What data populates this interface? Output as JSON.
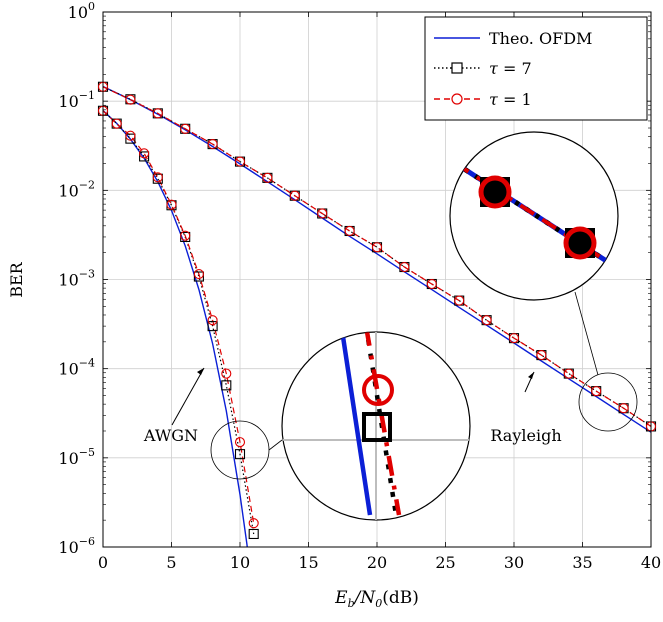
{
  "chart_data": {
    "type": "line",
    "title": "",
    "xlabel": "E_b/N_0(dB)",
    "ylabel": "BER",
    "xlim": [
      0,
      40
    ],
    "ylim": [
      1e-06,
      1
    ],
    "y_scale": "log",
    "grid": true,
    "legend_position": "top-right",
    "x_ticks": [
      "0",
      "5",
      "10",
      "15",
      "20",
      "25",
      "30",
      "35",
      "40"
    ],
    "y_tick_exponents": [
      "0",
      "−1",
      "−2",
      "−3",
      "−4",
      "−5",
      "−6"
    ],
    "y_tick_base": "10",
    "series": [
      {
        "name": "Theo. OFDM",
        "style": "solid",
        "color": "#0b1fd6",
        "marker": "none",
        "curves": [
          {
            "x": [
              0,
              1,
              2,
              3,
              4,
              5,
              6,
              7,
              8,
              9,
              10,
              10.5,
              11
            ],
            "y": [
              0.0786,
              0.0563,
              0.0375,
              0.0229,
              0.0125,
              0.00595,
              0.00239,
              0.000773,
              0.000191,
              3.36e-05,
              3.87e-06,
              1.1e-06,
              2.6e-07
            ]
          },
          {
            "x": [
              0,
              2,
              4,
              6,
              8,
              10,
              12,
              14,
              16,
              18,
              20,
              22,
              24,
              26,
              28,
              30,
              32,
              34,
              36,
              38,
              40
            ],
            "y": [
              0.146,
              0.104,
              0.0715,
              0.0477,
              0.031,
              0.0198,
              0.0125,
              0.00785,
              0.0049,
              0.00305,
              0.00194,
              0.00122,
              0.00077,
              0.000486,
              0.000307,
              0.000194,
              0.000122,
              7.7e-05,
              4.87e-05,
              3.07e-05,
              1.94e-05
            ]
          }
        ]
      },
      {
        "name": "τ = 7",
        "style": "dotted",
        "color": "#000000",
        "marker": "square",
        "curves": [
          {
            "x": [
              0,
              1,
              2,
              3,
              4,
              5,
              6,
              7,
              8,
              9,
              10,
              11
            ],
            "y": [
              0.078,
              0.056,
              0.038,
              0.024,
              0.0135,
              0.0068,
              0.003,
              0.00108,
              0.0003,
              6.5e-05,
              1.1e-05,
              1.4e-06
            ]
          },
          {
            "x": [
              0,
              2,
              4,
              6,
              8,
              10,
              12,
              14,
              16,
              18,
              20,
              22,
              24,
              26,
              28,
              30,
              32,
              34,
              36,
              38,
              40
            ],
            "y": [
              0.145,
              0.105,
              0.073,
              0.049,
              0.033,
              0.021,
              0.0138,
              0.0087,
              0.0055,
              0.0035,
              0.0023,
              0.00138,
              0.00089,
              0.00058,
              0.00035,
              0.00022,
              0.000142,
              8.8e-05,
              5.6e-05,
              3.6e-05,
              2.25e-05
            ]
          }
        ]
      },
      {
        "name": "τ = 1",
        "style": "dashed",
        "color": "#e00000",
        "marker": "circle",
        "curves": [
          {
            "x": [
              0,
              1,
              2,
              3,
              4,
              5,
              6,
              7,
              8,
              9,
              10,
              11
            ],
            "y": [
              0.078,
              0.056,
              0.041,
              0.026,
              0.014,
              0.0069,
              0.0031,
              0.00115,
              0.00035,
              8.8e-05,
              1.5e-05,
              1.85e-06
            ]
          },
          {
            "x": [
              0,
              2,
              4,
              6,
              8,
              10,
              12,
              14,
              16,
              18,
              20,
              22,
              24,
              26,
              28,
              30,
              32,
              34,
              36,
              38,
              40
            ],
            "y": [
              0.145,
              0.104,
              0.073,
              0.049,
              0.033,
              0.021,
              0.0138,
              0.0087,
              0.0055,
              0.0035,
              0.0023,
              0.00138,
              0.00089,
              0.00058,
              0.00035,
              0.00022,
              0.000142,
              8.8e-05,
              5.6e-05,
              3.6e-05,
              2.25e-05
            ]
          }
        ]
      }
    ],
    "annotations": [
      {
        "text": "AWGN",
        "arrow_to": {
          "x": 7.5,
          "y": 0.0001
        }
      },
      {
        "text": "Rayleigh",
        "arrow_to": {
          "x": 31,
          "y": 0.0001
        }
      }
    ],
    "zoom_callouts": [
      {
        "region": "AWGN",
        "center": {
          "x": 10,
          "y": 1.8e-05
        }
      },
      {
        "region": "Rayleigh",
        "center": {
          "x": 37,
          "y": 4.5e-05
        }
      }
    ]
  }
}
